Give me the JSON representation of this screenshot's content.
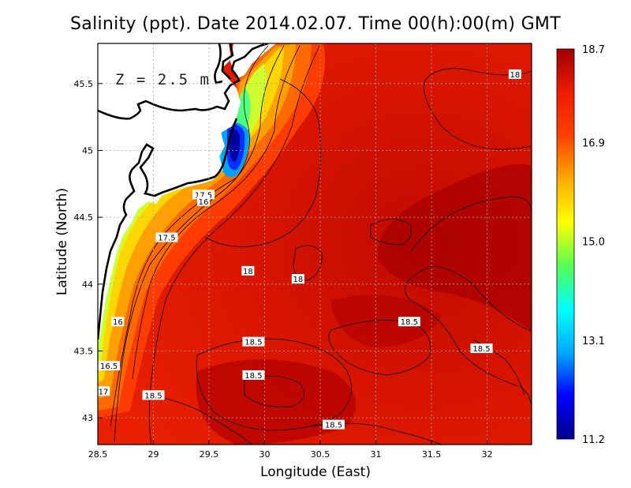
{
  "chart_data": {
    "type": "heatmap",
    "title": "Salinity (ppt). Date 2014.02.07. Time 00(h):00(m) GMT",
    "xlabel": "Longitude (East)",
    "ylabel": "Latitude (North)",
    "annotation": "Z = 2.5 m",
    "xlim": [
      28.5,
      32.4
    ],
    "ylim": [
      42.8,
      45.8
    ],
    "x_ticks": [
      "28.5",
      "29",
      "29.5",
      "30",
      "30.5",
      "31",
      "31.5",
      "32"
    ],
    "x_tick_values": [
      28.5,
      29,
      29.5,
      30,
      30.5,
      31,
      31.5,
      32
    ],
    "y_ticks": [
      "43",
      "43.5",
      "44",
      "44.5",
      "45",
      "45.5"
    ],
    "y_tick_values": [
      43,
      43.5,
      44,
      44.5,
      45,
      45.5
    ],
    "grid": true,
    "colorbar": {
      "min": 11.2,
      "max": 18.7,
      "ticks": [
        "18.7",
        "16.9",
        "15.0",
        "13.1",
        "11.2"
      ],
      "tick_values": [
        18.7,
        16.9,
        15.0,
        13.1,
        11.2
      ],
      "colors": [
        "#00008b",
        "#0000ff",
        "#00aaff",
        "#00ffff",
        "#55ff55",
        "#ffff00",
        "#ffaa00",
        "#ff4000",
        "#ee1c00",
        "#a00000"
      ]
    },
    "contour_labels": [
      {
        "text": "18",
        "lon": 32.25,
        "lat": 45.57
      },
      {
        "text": "17.5",
        "lon": 29.45,
        "lat": 44.67
      },
      {
        "text": "16",
        "lon": 29.45,
        "lat": 44.62
      },
      {
        "text": "17.5",
        "lon": 29.12,
        "lat": 44.35
      },
      {
        "text": "18",
        "lon": 29.85,
        "lat": 44.1
      },
      {
        "text": "18",
        "lon": 30.3,
        "lat": 44.04
      },
      {
        "text": "16",
        "lon": 28.68,
        "lat": 43.72
      },
      {
        "text": "18.5",
        "lon": 31.3,
        "lat": 43.72
      },
      {
        "text": "18.5",
        "lon": 29.9,
        "lat": 43.57
      },
      {
        "text": "18.5",
        "lon": 31.95,
        "lat": 43.52
      },
      {
        "text": "16.5",
        "lon": 28.6,
        "lat": 43.39
      },
      {
        "text": "18.5",
        "lon": 29.9,
        "lat": 43.32
      },
      {
        "text": "17",
        "lon": 28.55,
        "lat": 43.2
      },
      {
        "text": "18.5",
        "lon": 29.0,
        "lat": 43.17
      },
      {
        "text": "18.5",
        "lon": 30.62,
        "lat": 42.95
      }
    ]
  }
}
